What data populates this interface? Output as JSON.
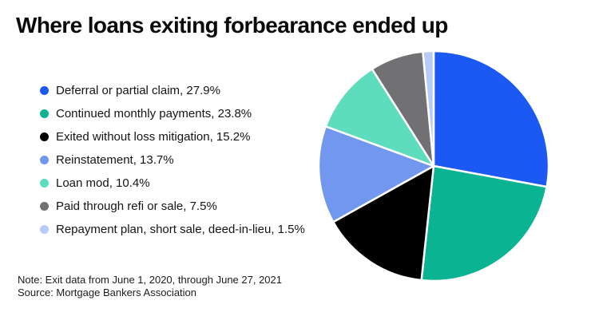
{
  "header": {
    "title": "Where loans exiting forbearance ended up"
  },
  "chart_data": {
    "type": "pie",
    "title": "Where loans exiting forbearance ended up",
    "labels": [
      "Deferral or partial claim",
      "Continued monthly payments",
      "Exited without loss mitigation",
      "Reinstatement",
      "Loan mod",
      "Paid through refi or sale",
      "Repayment plan, short sale, deed-in-lieu"
    ],
    "values": [
      27.9,
      23.8,
      15.2,
      13.7,
      10.4,
      7.5,
      1.5
    ],
    "unit": "%",
    "colors": [
      "#1c59f2",
      "#0ab392",
      "#000000",
      "#7297ef",
      "#5edcbe",
      "#717174",
      "#b6cbf7"
    ],
    "start_angle_deg": 0,
    "direction": "clockwise",
    "legend_position": "left",
    "legend_format": "{label}, {value}%"
  },
  "footer": {
    "note": "Note: Exit data from June 1, 2020, through June 27, 2021",
    "source": "Source: Mortgage Bankers Association"
  }
}
